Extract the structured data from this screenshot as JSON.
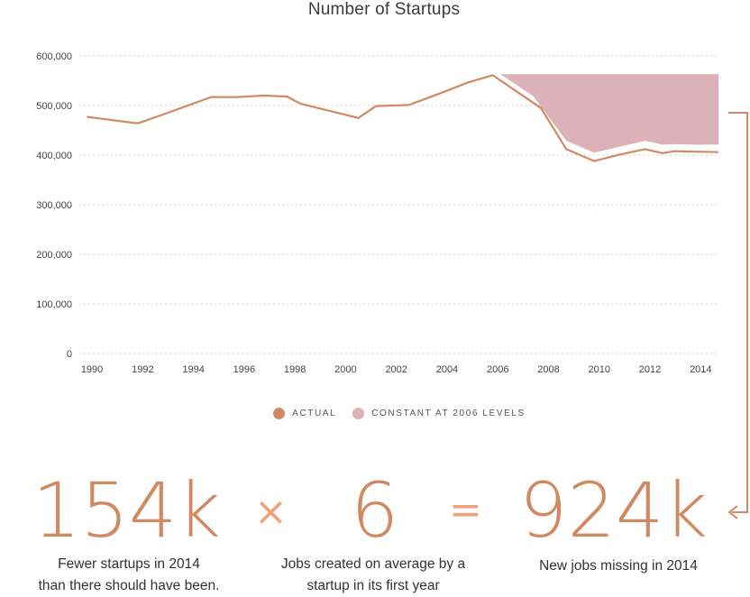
{
  "chart_data": {
    "type": "area",
    "title": "Number of Startups",
    "x_ticks": [
      "1990",
      "1992",
      "1994",
      "1996",
      "1998",
      "2000",
      "2002",
      "2004",
      "2006",
      "2008",
      "2010",
      "2012",
      "2014"
    ],
    "y_ticks": [
      "0",
      "100,000",
      "200,000",
      "300,000",
      "400,000",
      "500,000",
      "600,000"
    ],
    "ylim": [
      0,
      600000
    ],
    "xlim": [
      1989.5,
      2014.7
    ],
    "grid": true,
    "legend_position": "bottom",
    "series": [
      {
        "name": "ACTUAL",
        "type": "line",
        "color": "#d08a62",
        "x": [
          1989.8,
          1991.8,
          1992.7,
          1994.7,
          1995.7,
          1996.8,
          1997.7,
          1998.2,
          2000.5,
          2001.2,
          2002.5,
          2003.8,
          2004.8,
          2005.8,
          2007.7,
          2008.7,
          2009.8,
          2010.8,
          2011.8,
          2012.5,
          2013.0,
          2013.8,
          2014.7
        ],
        "values": [
          477000,
          464000,
          480000,
          517000,
          517000,
          520000,
          518000,
          504000,
          475000,
          499000,
          501000,
          526000,
          546000,
          561000,
          495000,
          412000,
          388000,
          401000,
          412000,
          404000,
          408000,
          407000,
          406000
        ]
      },
      {
        "name": "CONSTANT AT 2006 LEVELS",
        "type": "area",
        "color": "#dcb1b7",
        "x": [
          2006.1,
          2007.4,
          2008.7,
          2009.8,
          2010.8,
          2011.8,
          2012.5,
          2013.0,
          2013.8,
          2014.7
        ],
        "upper": [
          563000,
          563000,
          563000,
          563000,
          563000,
          563000,
          563000,
          563000,
          563000,
          563000
        ],
        "lower": [
          563000,
          519000,
          429000,
          405000,
          417000,
          429000,
          421000,
          422000,
          421000,
          421000
        ]
      }
    ]
  },
  "legend": {
    "actual_label": "ACTUAL",
    "constant_label": "CONSTANT AT 2006 LEVELS"
  },
  "equation": {
    "term1": "154k",
    "times": "×",
    "term2": "6",
    "equals": "=",
    "result": "924k",
    "caption1_line1": "Fewer startups in 2014",
    "caption1_line2": "than there should have been.",
    "caption2_line1": "Jobs created on average by a",
    "caption2_line2": "startup in its first year",
    "caption3": "New jobs missing in 2014"
  }
}
